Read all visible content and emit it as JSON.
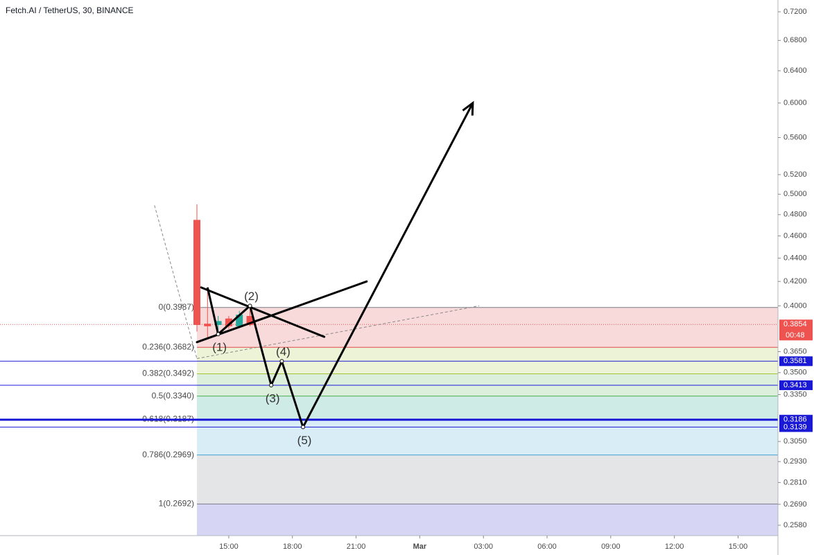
{
  "chart_data": {
    "type": "candlestick",
    "title": "Fetch.AI / TetherUS, 30, BINANCE",
    "log_scale": true,
    "grid": false,
    "x": [
      13.5,
      14,
      14.5,
      15,
      15.5,
      16
    ],
    "open": [
      0.475,
      0.386,
      0.385,
      0.39,
      0.384,
      0.392
    ],
    "high": [
      0.49,
      0.413,
      0.392,
      0.392,
      0.396,
      0.398
    ],
    "low": [
      0.38,
      0.375,
      0.378,
      0.382,
      0.383,
      0.384
    ],
    "close": [
      0.385,
      0.384,
      0.388,
      0.384,
      0.393,
      0.385
    ],
    "up_color": "#26a69a",
    "down_color": "#ef5350",
    "xlim": [
      4.22,
      40.88
    ],
    "xticks": [
      {
        "value": 15,
        "label": "15:00"
      },
      {
        "value": 18,
        "label": "18:00"
      },
      {
        "value": 21,
        "label": "21:00"
      },
      {
        "value": 24,
        "label": "Mar"
      },
      {
        "value": 27,
        "label": "03:00"
      },
      {
        "value": 30,
        "label": "06:00"
      },
      {
        "value": 33,
        "label": "09:00"
      },
      {
        "value": 36,
        "label": "12:00"
      },
      {
        "value": 39,
        "label": "15:00"
      }
    ],
    "ylim": [
      0.2527,
      0.7372
    ],
    "yticks": [
      {
        "value": 0.72,
        "label": "0.7200"
      },
      {
        "value": 0.68,
        "label": "0.6800"
      },
      {
        "value": 0.64,
        "label": "0.6400"
      },
      {
        "value": 0.6,
        "label": "0.6000"
      },
      {
        "value": 0.56,
        "label": "0.5600"
      },
      {
        "value": 0.52,
        "label": "0.5200"
      },
      {
        "value": 0.5,
        "label": "0.5000"
      },
      {
        "value": 0.48,
        "label": "0.4800"
      },
      {
        "value": 0.46,
        "label": "0.4600"
      },
      {
        "value": 0.44,
        "label": "0.4400"
      },
      {
        "value": 0.42,
        "label": "0.4200"
      },
      {
        "value": 0.4,
        "label": "0.4000"
      },
      {
        "value": 0.365,
        "label": "0.3650"
      },
      {
        "value": 0.35,
        "label": "0.3500"
      },
      {
        "value": 0.335,
        "label": "0.3350"
      },
      {
        "value": 0.305,
        "label": "0.3050"
      },
      {
        "value": 0.293,
        "label": "0.2930"
      },
      {
        "value": 0.281,
        "label": "0.2810"
      },
      {
        "value": 0.269,
        "label": "0.2690"
      },
      {
        "value": 0.258,
        "label": "0.2580"
      }
    ],
    "last_price": {
      "value": 0.3854,
      "countdown": "00:48",
      "color": "#ef5350"
    },
    "fib": {
      "x_start": 13.5,
      "levels": [
        {
          "label": "0(0.3987)",
          "value": 0.3987,
          "color": "#787b86"
        },
        {
          "label": "0.236(0.3682)",
          "value": 0.3682,
          "color": "#e04848"
        },
        {
          "label": "0.382(0.3492)",
          "value": 0.3492,
          "color": "#a3c232"
        },
        {
          "label": "0.5(0.3340)",
          "value": 0.334,
          "color": "#4caf50"
        },
        {
          "label": "0.618(0.3187)",
          "value": 0.3187,
          "color": "#089981"
        },
        {
          "label": "0.786(0.2969)",
          "value": 0.2969,
          "color": "#3ea3d3"
        },
        {
          "label": "1(0.2692)",
          "value": 0.2692,
          "color": "#787b86"
        }
      ]
    },
    "hlines": [
      {
        "value": 0.3581,
        "color": "#1a1ad6",
        "width": 1
      },
      {
        "value": 0.3413,
        "color": "#1a1ad6",
        "width": 1
      },
      {
        "value": 0.3186,
        "color": "#1a1ad6",
        "width": 3
      },
      {
        "value": 0.3139,
        "color": "#1a1ad6",
        "width": 1
      }
    ],
    "wave": {
      "x": [
        14,
        14.5,
        16,
        17,
        17.5,
        18.5,
        26.5
      ],
      "y": [
        0.415,
        0.378,
        0.4,
        0.3413,
        0.3581,
        0.3139,
        0.6
      ],
      "labels": [
        null,
        "(1)",
        "(2)",
        "(3)",
        "(4)",
        "(5)",
        null
      ]
    },
    "trend_lines": [
      {
        "x": [
          13.7,
          19.5
        ],
        "y": [
          0.415,
          0.376
        ]
      },
      {
        "x": [
          13.5,
          21.5
        ],
        "y": [
          0.372,
          0.42
        ]
      }
    ],
    "dashed_lines": [
      {
        "x": [
          11.5,
          13.5
        ],
        "y": [
          0.489,
          0.36
        ]
      },
      {
        "x": [
          13.5,
          26.8
        ],
        "y": [
          0.36,
          0.4
        ]
      }
    ]
  }
}
